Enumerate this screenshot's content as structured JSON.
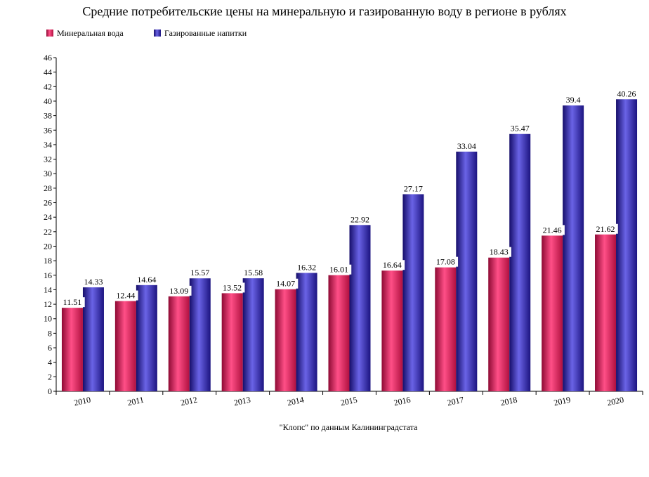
{
  "chart_data": {
    "type": "bar",
    "title": "Средние потребительские цены на минеральную и газированную воду в регионе в рублях",
    "categories": [
      "2010",
      "2011",
      "2012",
      "2013",
      "2014",
      "2015",
      "2016",
      "2017",
      "2018",
      "2019",
      "2020"
    ],
    "series": [
      {
        "name": "Минеральная вода",
        "color": "#e0185a",
        "values": [
          11.51,
          12.44,
          13.09,
          13.52,
          14.07,
          16.01,
          16.64,
          17.08,
          18.43,
          21.46,
          21.62
        ],
        "labels": [
          "11.51",
          "12.44",
          "13.09",
          "13.52",
          "14.07",
          "16.01",
          "16.64",
          "17.08",
          "18.43",
          "21.46",
          "21.62"
        ]
      },
      {
        "name": "Газированные напитки",
        "color": "#2a1f9e",
        "values": [
          14.33,
          14.64,
          15.57,
          15.58,
          16.32,
          22.92,
          27.17,
          33.04,
          35.47,
          39.4,
          40.26
        ],
        "labels": [
          "14.33",
          "14.64",
          "15.57",
          "15.58",
          "16.32",
          "22.92",
          "27.17",
          "33.04",
          "35.47",
          "39.4",
          "40.26"
        ]
      }
    ],
    "y_ticks": [
      "0",
      "2",
      "4",
      "6",
      "8",
      "10",
      "12",
      "14",
      "16",
      "18",
      "20",
      "22",
      "24",
      "26",
      "28",
      "30",
      "32",
      "34",
      "36",
      "38",
      "40",
      "42",
      "44",
      "46"
    ],
    "ylim": [
      0,
      46
    ],
    "legend_position": "top-left",
    "grid": false,
    "xlabel": "",
    "ylabel": ""
  },
  "source_note": "\"Клопс\" по данным Калининградстата"
}
